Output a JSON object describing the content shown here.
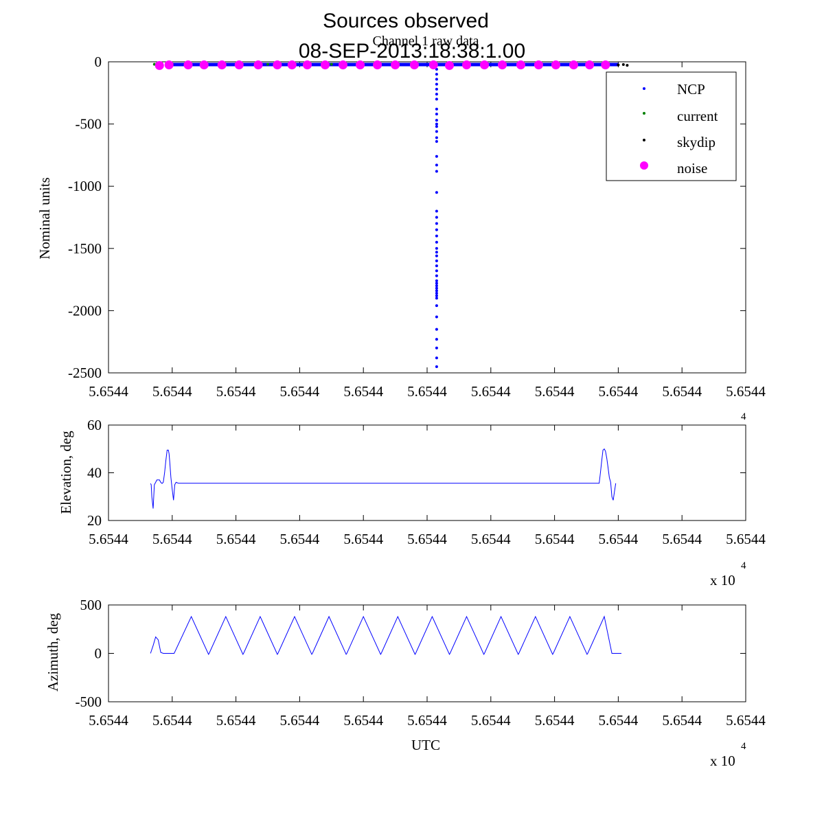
{
  "figure": {
    "title": "Sources observed",
    "subtitle": "08-SEP-2013:18:38:1.00"
  },
  "chart_data": [
    {
      "type": "scatter",
      "title": "Channel 1 raw data",
      "xlabel": "",
      "ylabel": "Nominal units",
      "xlim": [
        0,
        10
      ],
      "ylim": [
        -2500,
        0
      ],
      "xtick_labels": [
        "5.6544",
        "5.6544",
        "5.6544",
        "5.6544",
        "5.6544",
        "5.6544",
        "5.6544",
        "5.6544",
        "5.6544",
        "5.6544",
        "5.6544"
      ],
      "ytick_values": [
        0,
        -500,
        -1000,
        -1500,
        -2000,
        -2500
      ],
      "ytick_labels": [
        "0",
        "-500",
        "-1000",
        "-1500",
        "-2000",
        "-2500"
      ],
      "x_exponent_base": "",
      "x_exponent_power": "4",
      "legend": {
        "position": "top-right",
        "entries": [
          "NCP",
          "current",
          "skydip",
          "noise"
        ]
      },
      "series": [
        {
          "name": "NCP",
          "color": "#0000ff",
          "marker": "dot",
          "line": {
            "x": [
              0.9,
              8.0
            ],
            "y": [
              -22,
              -22
            ]
          },
          "x": [
            5.15,
            5.15,
            5.15,
            5.15,
            5.15,
            5.15,
            5.15,
            5.15,
            5.15,
            5.15,
            5.15,
            5.15,
            5.15,
            5.15,
            5.15,
            5.15,
            5.15,
            5.15,
            5.15,
            5.15,
            5.15,
            5.15,
            5.15,
            5.15,
            5.15,
            5.15,
            5.15,
            5.15,
            5.15,
            5.15,
            5.15,
            5.15,
            5.15,
            5.15,
            5.15,
            5.15,
            5.15,
            5.15,
            5.15,
            5.15,
            5.15,
            5.15,
            5.15,
            5.15,
            5.15,
            5.15,
            5.15
          ],
          "y": [
            -60,
            -100,
            -140,
            -180,
            -220,
            -260,
            -300,
            -380,
            -420,
            -470,
            -500,
            -520,
            -560,
            -610,
            -640,
            -760,
            -830,
            -880,
            -1050,
            -1200,
            -1250,
            -1300,
            -1350,
            -1400,
            -1450,
            -1500,
            -1530,
            -1560,
            -1600,
            -1640,
            -1680,
            -1720,
            -1760,
            -1800,
            -1820,
            -1840,
            -1860,
            -1880,
            -1900,
            -1960,
            -2050,
            -2150,
            -2230,
            -2300,
            -2380,
            -2450,
            -1780
          ]
        },
        {
          "name": "current",
          "color": "#008000",
          "marker": "dot",
          "x": [
            0.72,
            1.0,
            1.5,
            2.5,
            3.5
          ],
          "y": [
            -20,
            -20,
            -20,
            -20,
            -20
          ]
        },
        {
          "name": "skydip",
          "color": "#000000",
          "marker": "dot",
          "x": [
            8.0,
            8.08,
            8.14
          ],
          "y": [
            -25,
            -22,
            -28
          ]
        },
        {
          "name": "noise",
          "color": "#ff00ff",
          "marker": "circle",
          "x": [
            0.8,
            0.95,
            1.25,
            1.5,
            1.78,
            2.05,
            2.35,
            2.65,
            2.88,
            3.12,
            3.4,
            3.68,
            3.95,
            4.22,
            4.5,
            4.8,
            5.1,
            5.35,
            5.62,
            5.9,
            6.18,
            6.47,
            6.75,
            7.02,
            7.3,
            7.55,
            7.8
          ],
          "y": [
            -30,
            -25,
            -25,
            -25,
            -25,
            -25,
            -25,
            -25,
            -25,
            -25,
            -25,
            -25,
            -25,
            -25,
            -25,
            -25,
            -25,
            -30,
            -25,
            -25,
            -25,
            -25,
            -25,
            -25,
            -25,
            -25,
            -25
          ]
        }
      ]
    },
    {
      "type": "line",
      "title": "",
      "xlabel": "",
      "ylabel": "Elevation, deg",
      "xlim": [
        0,
        10
      ],
      "ylim": [
        20,
        60
      ],
      "xtick_labels": [
        "5.6544",
        "5.6544",
        "5.6544",
        "5.6544",
        "5.6544",
        "5.6544",
        "5.6544",
        "5.6544",
        "5.6544",
        "5.6544",
        "5.6544"
      ],
      "ytick_values": [
        60,
        40,
        20
      ],
      "ytick_labels": [
        "60",
        "40",
        "20"
      ],
      "x_exponent_base": "x 10",
      "x_exponent_power": "4",
      "series": [
        {
          "name": "Elevation",
          "color": "#0000ff",
          "x": [
            0.66,
            0.67,
            0.68,
            0.7,
            0.72,
            0.74,
            0.76,
            0.8,
            0.82,
            0.84,
            0.86,
            0.88,
            0.9,
            0.92,
            0.94,
            0.95,
            0.96,
            0.98,
            1.0,
            1.02,
            1.04,
            1.06,
            1.08,
            1.1,
            1.12,
            1.14,
            1.2,
            2.0,
            3.0,
            4.0,
            5.0,
            6.0,
            7.0,
            7.6,
            7.7,
            7.72,
            7.74,
            7.76,
            7.78,
            7.8,
            7.82,
            7.84,
            7.86,
            7.88,
            7.9,
            7.92,
            7.94,
            7.96
          ],
          "y": [
            35.5,
            35,
            30,
            25,
            35,
            36,
            37,
            37,
            36,
            35.5,
            36,
            40,
            45,
            49.5,
            49.5,
            48,
            45,
            38,
            33,
            28.5,
            35,
            36,
            35.8,
            35.6,
            35.6,
            35.6,
            35.6,
            35.6,
            35.6,
            35.6,
            35.6,
            35.6,
            35.6,
            35.6,
            35.6,
            40,
            45,
            49.5,
            50,
            49,
            46,
            42,
            38,
            36,
            30,
            28.5,
            32,
            35.6
          ]
        }
      ]
    },
    {
      "type": "line",
      "title": "",
      "xlabel": "UTC",
      "ylabel": "Azimuth, deg",
      "xlim": [
        0,
        10
      ],
      "ylim": [
        -500,
        500
      ],
      "xtick_labels": [
        "5.6544",
        "5.6544",
        "5.6544",
        "5.6544",
        "5.6544",
        "5.6544",
        "5.6544",
        "5.6544",
        "5.6544",
        "5.6544",
        "5.6544"
      ],
      "ytick_values": [
        500,
        0,
        -500
      ],
      "ytick_labels": [
        "500",
        "0",
        "-500"
      ],
      "x_exponent_base": "x 10",
      "x_exponent_power": "4",
      "series": [
        {
          "name": "Azimuth",
          "color": "#0000ff",
          "x": [
            0.66,
            0.7,
            0.74,
            0.78,
            0.82,
            0.86,
            1.0,
            1.03,
            1.3,
            1.57,
            1.58,
            1.84,
            2.11,
            2.12,
            2.38,
            2.65,
            2.66,
            2.92,
            3.19,
            3.2,
            3.46,
            3.73,
            3.74,
            4.0,
            4.27,
            4.28,
            4.54,
            4.81,
            4.82,
            5.08,
            5.35,
            5.36,
            5.62,
            5.89,
            5.9,
            6.16,
            6.43,
            6.44,
            6.7,
            6.97,
            6.98,
            7.24,
            7.51,
            7.52,
            7.78,
            7.9,
            8.05
          ],
          "y": [
            0,
            80,
            170,
            140,
            10,
            0,
            0,
            0,
            380,
            -10,
            0,
            380,
            -10,
            0,
            380,
            -10,
            0,
            380,
            -10,
            0,
            380,
            -10,
            0,
            380,
            -10,
            0,
            380,
            -10,
            0,
            380,
            -10,
            0,
            380,
            -10,
            0,
            380,
            -10,
            0,
            380,
            -10,
            0,
            380,
            -10,
            0,
            380,
            0,
            0
          ]
        }
      ]
    }
  ]
}
